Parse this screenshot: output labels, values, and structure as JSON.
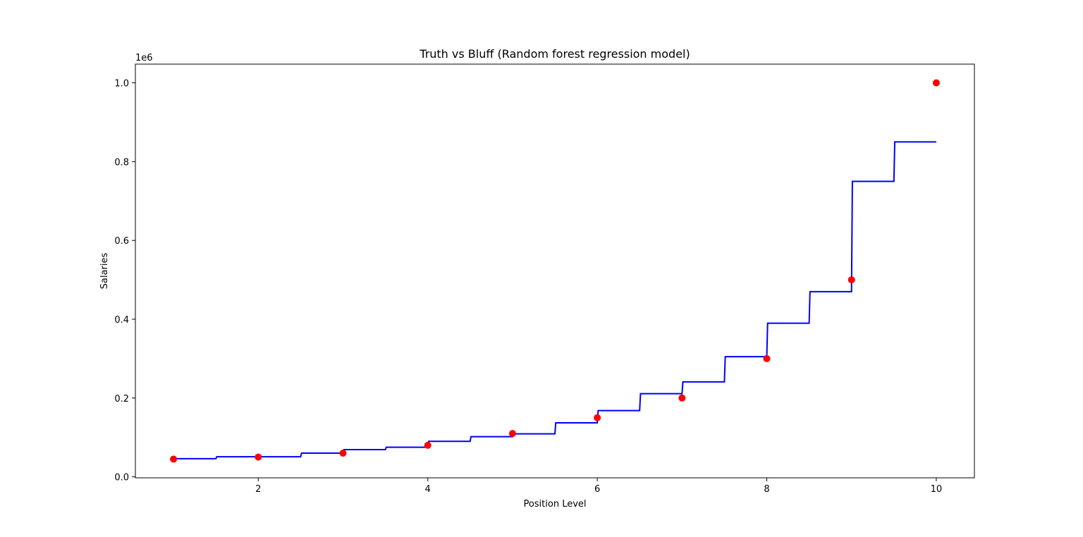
{
  "chart_data": {
    "type": "line",
    "title": "Truth vs Bluff (Random forest regression model)",
    "xlabel": "Position Level",
    "ylabel": "Salaries",
    "y_offset_label": "1e6",
    "xlim": [
      0.55,
      10.45
    ],
    "ylim": [
      -0.0025,
      1.0475
    ],
    "x_ticks": [
      2,
      4,
      6,
      8,
      10
    ],
    "x_tick_labels": [
      "2",
      "4",
      "6",
      "8",
      "10"
    ],
    "y_ticks": [
      0.0,
      0.2,
      0.4,
      0.6,
      0.8,
      1.0
    ],
    "y_tick_labels": [
      "0.0",
      "0.2",
      "0.4",
      "0.6",
      "0.8",
      "1.0"
    ],
    "grid": false,
    "legend": "none",
    "series": [
      {
        "kind": "scatter",
        "color": "#ff0000",
        "x": [
          1,
          2,
          3,
          4,
          5,
          6,
          7,
          8,
          9,
          10
        ],
        "y": [
          0.045,
          0.05,
          0.06,
          0.08,
          0.11,
          0.15,
          0.2,
          0.3,
          0.5,
          1.0
        ]
      },
      {
        "kind": "step-line",
        "color": "#0000ff",
        "segments": [
          {
            "x0": 1.0,
            "x1": 1.5,
            "y": 0.046
          },
          {
            "x0": 1.5,
            "x1": 2.5,
            "y": 0.051
          },
          {
            "x0": 2.5,
            "x1": 3.0,
            "y": 0.06
          },
          {
            "x0": 3.0,
            "x1": 3.5,
            "y": 0.069
          },
          {
            "x0": 3.5,
            "x1": 4.0,
            "y": 0.075
          },
          {
            "x0": 4.0,
            "x1": 4.5,
            "y": 0.09
          },
          {
            "x0": 4.5,
            "x1": 5.0,
            "y": 0.102
          },
          {
            "x0": 5.0,
            "x1": 5.5,
            "y": 0.109
          },
          {
            "x0": 5.5,
            "x1": 6.0,
            "y": 0.137
          },
          {
            "x0": 6.0,
            "x1": 6.5,
            "y": 0.168
          },
          {
            "x0": 6.5,
            "x1": 7.0,
            "y": 0.211
          },
          {
            "x0": 7.0,
            "x1": 7.5,
            "y": 0.241
          },
          {
            "x0": 7.5,
            "x1": 8.0,
            "y": 0.305
          },
          {
            "x0": 8.0,
            "x1": 8.5,
            "y": 0.39
          },
          {
            "x0": 8.5,
            "x1": 9.0,
            "y": 0.47
          },
          {
            "x0": 9.0,
            "x1": 9.5,
            "y": 0.75
          },
          {
            "x0": 9.5,
            "x1": 10.0,
            "y": 0.85
          }
        ]
      }
    ]
  }
}
